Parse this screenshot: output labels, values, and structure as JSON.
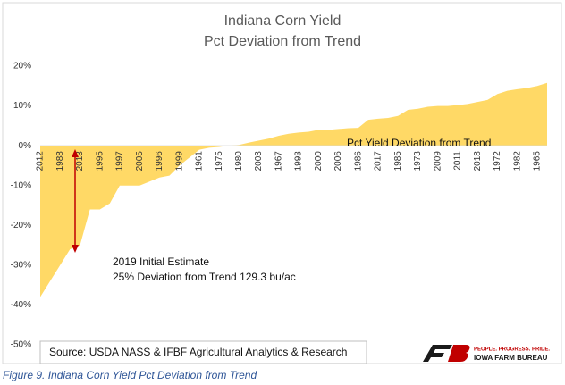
{
  "chart_data": {
    "type": "area",
    "title": [
      "Indiana Corn Yield",
      "Pct Deviation from Trend"
    ],
    "categories": [
      "2012",
      null,
      "1988",
      null,
      "2013",
      null,
      "1995",
      null,
      "1997",
      null,
      "2005",
      null,
      "1996",
      null,
      "1999",
      null,
      "1961",
      null,
      "1975",
      null,
      "1980",
      null,
      "2003",
      null,
      "1967",
      null,
      "1993",
      null,
      "2000",
      null,
      "2006",
      null,
      "1986",
      null,
      "2017",
      null,
      "1985",
      null,
      "1973",
      null,
      "2009",
      null,
      "2011",
      null,
      "2018",
      null,
      "1972",
      null,
      "1982",
      null,
      "1965",
      null
    ],
    "series": [
      {
        "name": "Pct Yield Deviation from Trend",
        "color": "#ffd966",
        "values": [
          -38,
          -34,
          -30,
          -26,
          -25,
          -16,
          -16,
          -14.5,
          -10,
          -10,
          -10,
          -9,
          -8,
          -7.5,
          -5,
          -3,
          -1,
          -0.5,
          -0.3,
          0,
          0.2,
          0.8,
          1.3,
          1.8,
          2.5,
          3,
          3.3,
          3.5,
          4,
          4,
          4.2,
          4.4,
          4.5,
          6.5,
          6.8,
          7,
          7.5,
          9,
          9.3,
          9.8,
          10,
          10,
          10.2,
          10.5,
          11,
          11.5,
          13,
          13.8,
          14.2,
          14.5,
          15,
          15.8
        ]
      }
    ],
    "ylim": [
      -50,
      20
    ],
    "yticks": [
      {
        "value": -50,
        "label": "-50%"
      },
      {
        "value": -40,
        "label": "-40%"
      },
      {
        "value": -30,
        "label": "-30%"
      },
      {
        "value": -20,
        "label": "-20%"
      },
      {
        "value": -10,
        "label": "-10%"
      },
      {
        "value": 0,
        "label": "0%"
      },
      {
        "value": 10,
        "label": "10%"
      },
      {
        "value": 20,
        "label": "20%"
      }
    ],
    "annotations": [
      "2019 Initial Estimate",
      "25% Deviation from Trend  129.3 bu/ac"
    ],
    "source": "Source: USDA NASS & IFBF Agricultural Analytics & Research",
    "logo": {
      "tagline": "PEOPLE. PROGRESS. PRIDE.",
      "name": "IOWA FARM BUREAU"
    },
    "caption": "Figure 9. Indiana Corn Yield Pct Deviation from Trend"
  }
}
